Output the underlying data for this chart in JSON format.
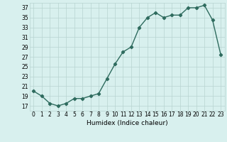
{
  "title": "",
  "xlabel": "Humidex (Indice chaleur)",
  "x": [
    0,
    1,
    2,
    3,
    4,
    5,
    6,
    7,
    8,
    9,
    10,
    11,
    12,
    13,
    14,
    15,
    16,
    17,
    18,
    19,
    20,
    21,
    22,
    23
  ],
  "y": [
    20,
    19,
    17.5,
    17,
    17.5,
    18.5,
    18.5,
    19,
    19.5,
    22.5,
    25.5,
    28,
    29,
    33,
    35,
    36,
    35,
    35.5,
    35.5,
    37,
    37,
    37.5,
    34.5,
    27.5
  ],
  "xlim": [
    -0.5,
    23.5
  ],
  "ylim": [
    16,
    38
  ],
  "yticks": [
    17,
    19,
    21,
    23,
    25,
    27,
    29,
    31,
    33,
    35,
    37
  ],
  "xticks": [
    0,
    1,
    2,
    3,
    4,
    5,
    6,
    7,
    8,
    9,
    10,
    11,
    12,
    13,
    14,
    15,
    16,
    17,
    18,
    19,
    20,
    21,
    22,
    23
  ],
  "line_color": "#2e6b5e",
  "bg_color": "#d8f0ee",
  "grid_color": "#b8d4d0",
  "label_color": "#000000",
  "marker": "D",
  "marker_size": 2.2,
  "line_width": 1.0,
  "tick_fontsize": 5.5,
  "xlabel_fontsize": 6.5
}
